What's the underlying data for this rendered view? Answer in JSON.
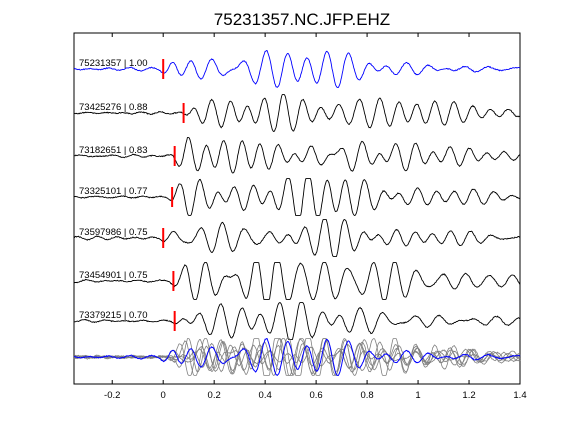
{
  "chart_data": {
    "type": "line",
    "title": "75231357.NC.JFP.EHZ",
    "xlabel": "",
    "ylabel": "",
    "xlim": [
      -0.35,
      1.4
    ],
    "xticks": [
      -0.2,
      0,
      0.2,
      0.4,
      0.6,
      0.8,
      1,
      1.2,
      1.4
    ],
    "xtick_labels": [
      "-0.2",
      "0",
      "0.2",
      "0.4",
      "0.6",
      "0.8",
      "1",
      "1.2",
      "1.4"
    ],
    "grid": false,
    "colors": {
      "reference": "#0000ff",
      "trace": "#000000",
      "overlay": "#808080",
      "pick": "#ff0000"
    },
    "series": [
      {
        "label": "75231357 | 1.00",
        "pick_time": 0.0,
        "color": "#0000ff"
      },
      {
        "label": "73425276 | 0.88",
        "pick_time": 0.08,
        "color": "#000000"
      },
      {
        "label": "73182651 | 0.83",
        "pick_time": 0.045,
        "color": "#000000"
      },
      {
        "label": "73325101 | 0.77",
        "pick_time": 0.035,
        "color": "#000000"
      },
      {
        "label": "73597986 | 0.75",
        "pick_time": 0.0,
        "color": "#000000"
      },
      {
        "label": "73454901 | 0.75",
        "pick_time": 0.04,
        "color": "#000000"
      },
      {
        "label": "73379215 | 0.70",
        "pick_time": 0.045,
        "color": "#000000"
      }
    ],
    "stack": {
      "overlay_color": "#808080",
      "reference_color": "#0000ff"
    }
  }
}
